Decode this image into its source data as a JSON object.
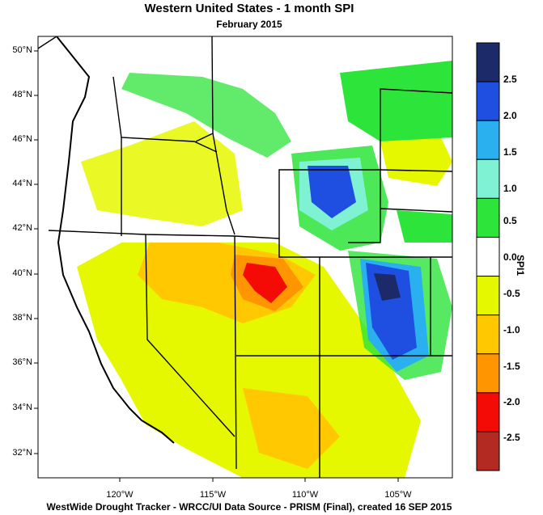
{
  "title": "Western United States - 1 month SPI",
  "subtitle": "February 2015",
  "footer": "WestWide Drought Tracker - WRCC/UI  Data Source - PRISM (Final), created 16 SEP 2015",
  "lat_labels": [
    "50°N",
    "48°N",
    "46°N",
    "44°N",
    "42°N",
    "40°N",
    "38°N",
    "36°N",
    "34°N",
    "32°N"
  ],
  "lon_labels": [
    "120°W",
    "115°W",
    "110°W",
    "105°W"
  ],
  "legend": {
    "title": "SPI1",
    "colors": [
      "#1c2a6a",
      "#1f4fe0",
      "#2ab0ef",
      "#7ef2d2",
      "#2de43a",
      "#ffffff",
      "#e6f800",
      "#ffc800",
      "#ff9500",
      "#f50b05",
      "#b22a22"
    ],
    "boundaries": [
      "2.5",
      "2.0",
      "1.5",
      "1.0",
      "0.5",
      "0.0",
      "-0.5",
      "-1.0",
      "-1.5",
      "-2.0",
      "-2.5"
    ]
  },
  "map_colors": {
    "background": "#ffffff",
    "border": "#000000",
    "ocean": "#ffffff"
  }
}
